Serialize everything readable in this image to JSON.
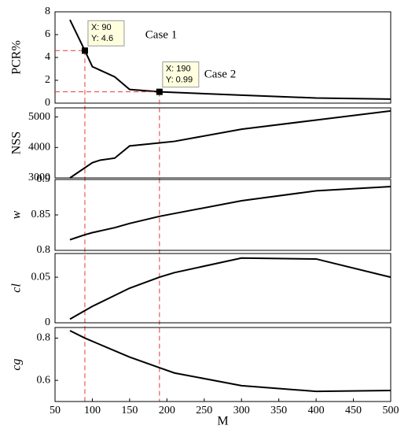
{
  "chart_data": [
    {
      "type": "line",
      "ylabel": "PCR%",
      "xlim": [
        50,
        500
      ],
      "ylim": [
        0,
        8
      ],
      "yticks": [
        0,
        2,
        4,
        6,
        8
      ],
      "x": [
        70,
        90,
        100,
        110,
        130,
        150,
        190,
        300,
        400,
        500
      ],
      "values": [
        7.3,
        4.6,
        3.2,
        2.9,
        2.3,
        1.2,
        0.99,
        0.7,
        0.45,
        0.35
      ],
      "color": "#000000",
      "texts": [
        "Case 1",
        "Case 2"
      ],
      "annotations": [
        {
          "x": 90,
          "y": 4.6,
          "x_label": "X: 90",
          "y_label": "Y: 4.6"
        },
        {
          "x": 190,
          "y": 0.99,
          "x_label": "X: 190",
          "y_label": "Y: 0.99"
        }
      ]
    },
    {
      "type": "line",
      "ylabel": "NSS",
      "xlim": [
        50,
        500
      ],
      "ylim": [
        3000,
        5300
      ],
      "yticks": [
        3000,
        4000,
        5000
      ],
      "x": [
        70,
        100,
        110,
        130,
        150,
        190,
        210,
        300,
        400,
        500
      ],
      "values": [
        3000,
        3500,
        3580,
        3650,
        4050,
        4150,
        4200,
        4600,
        4900,
        5200
      ],
      "color": "#000000"
    },
    {
      "type": "line",
      "ylabel": "w",
      "xlim": [
        50,
        500
      ],
      "ylim": [
        0.8,
        0.9
      ],
      "yticks": [
        0.8,
        0.85,
        0.9
      ],
      "x": [
        70,
        90,
        100,
        130,
        150,
        190,
        210,
        300,
        400,
        500
      ],
      "values": [
        0.815,
        0.822,
        0.825,
        0.832,
        0.838,
        0.848,
        0.852,
        0.87,
        0.884,
        0.89
      ],
      "color": "#000000"
    },
    {
      "type": "line",
      "ylabel": "cl",
      "xlim": [
        50,
        500
      ],
      "ylim": [
        0,
        0.076
      ],
      "yticks": [
        0,
        0.05
      ],
      "x": [
        70,
        100,
        130,
        150,
        190,
        210,
        300,
        400,
        500
      ],
      "values": [
        0.004,
        0.018,
        0.03,
        0.038,
        0.05,
        0.055,
        0.071,
        0.07,
        0.05
      ],
      "color": "#000000"
    },
    {
      "type": "line",
      "ylabel": "cg",
      "xlabel": "M",
      "xlim": [
        50,
        500
      ],
      "ylim": [
        0.5,
        0.85
      ],
      "yticks": [
        0.6,
        0.8
      ],
      "xticks": [
        50,
        100,
        150,
        200,
        250,
        300,
        350,
        400,
        450,
        500
      ],
      "x": [
        70,
        90,
        110,
        150,
        190,
        210,
        300,
        400,
        500
      ],
      "values": [
        0.835,
        0.8,
        0.77,
        0.71,
        0.66,
        0.635,
        0.575,
        0.548,
        0.552
      ],
      "color": "#000000"
    }
  ]
}
